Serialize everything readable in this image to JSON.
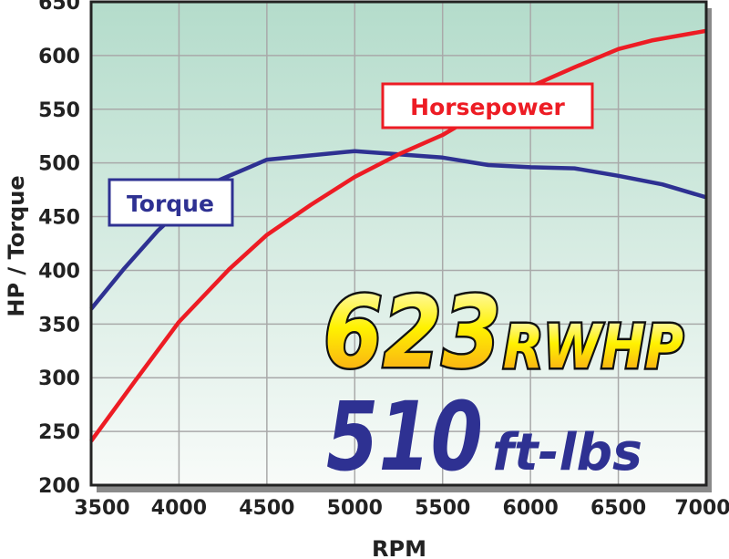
{
  "chart_data": {
    "type": "line",
    "xlabel": "RPM",
    "ylabel": "HP / Torque",
    "xlim": [
      3500,
      7000
    ],
    "ylim": [
      200,
      650
    ],
    "xticks": [
      3500,
      4000,
      4500,
      5000,
      5500,
      6000,
      6500,
      7000
    ],
    "yticks": [
      200,
      250,
      300,
      350,
      400,
      450,
      500,
      550,
      600,
      650
    ],
    "grid": true,
    "series": [
      {
        "name": "Torque",
        "color": "#2e3192",
        "x": [
          3500,
          3690,
          3880,
          4000,
          4214,
          4400,
          4500,
          5000,
          5500,
          5760,
          6000,
          6250,
          6500,
          6750,
          7000
        ],
        "y": [
          364,
          402,
          437,
          455,
          483,
          496,
          503,
          511,
          505,
          498,
          496,
          495,
          488,
          480,
          468
        ]
      },
      {
        "name": "Horsepower",
        "color": "#ed1c24",
        "x": [
          3500,
          3750,
          4000,
          4285,
          4500,
          4750,
          5000,
          5250,
          5500,
          5750,
          6000,
          6250,
          6500,
          6690,
          7000
        ],
        "y": [
          241,
          297,
          352,
          401,
          433,
          461,
          487,
          508,
          526,
          550,
          571,
          589,
          606,
          614,
          623
        ]
      }
    ],
    "annotations": {
      "hp_value": "623",
      "hp_unit": "RWHP",
      "tq_value": "510",
      "tq_unit": "ft-lbs"
    },
    "colors": {
      "background_top": "#b4dccb",
      "background_bottom": "#f8fbf9",
      "grid": "#a9a9a9"
    }
  }
}
